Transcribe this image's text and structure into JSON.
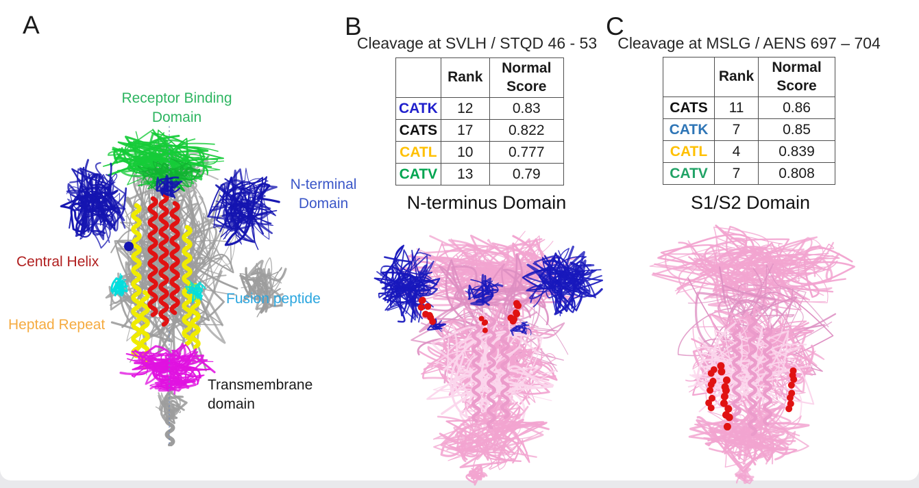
{
  "panels": {
    "a": {
      "letter": "A",
      "labels": {
        "receptor_binding_domain": {
          "text": "Receptor Binding Domain",
          "color": "#2eb561"
        },
        "n_terminal_domain": {
          "text": "N-terminal Domain",
          "color": "#3a56c8"
        },
        "central_helix": {
          "text": "Central Helix",
          "color": "#b01e1e"
        },
        "fusion_peptide": {
          "text": "Fusion peptide",
          "color": "#2ba6df"
        },
        "heptad_repeat": {
          "text": "Heptad Repeat",
          "color": "#f5ab40"
        },
        "transmembrane_domain": {
          "text": "Transmembrane domain",
          "color": "#1a1a1a"
        }
      },
      "structure_colors": {
        "body": "#9d9d9d",
        "receptor_binding_domain": "#16cb38",
        "n_terminal_domain": "#1414b0",
        "central_helix": "#e11212",
        "heptad_repeat": "#efeb00",
        "fusion_peptide": "#00dede",
        "transmembrane_domain": "#e012e0"
      }
    },
    "b": {
      "letter": "B",
      "title": "Cleavage at SVLH / STQD 46 - 53",
      "subtitle": "N-terminus Domain",
      "table": {
        "headers": [
          "",
          "Rank",
          "Normal Score"
        ],
        "rows": [
          {
            "label": "CATK",
            "color": "#2020cc",
            "rank": "12",
            "score": "0.83"
          },
          {
            "label": "CATS",
            "color": "#111111",
            "rank": "17",
            "score": "0.822"
          },
          {
            "label": "CATL",
            "color": "#ffc000",
            "rank": "10",
            "score": "0.777"
          },
          {
            "label": "CATV",
            "color": "#00a550",
            "rank": "13",
            "score": "0.79"
          }
        ]
      },
      "structure_colors": {
        "body": "#f2a4d0",
        "n_terminal_domain": "#1818bc",
        "cleavage_site": "#e01212"
      }
    },
    "c": {
      "letter": "C",
      "title": "Cleavage at MSLG / AENS 697 – 704",
      "subtitle": "S1/S2 Domain",
      "table": {
        "headers": [
          "",
          "Rank",
          "Normal Score"
        ],
        "rows": [
          {
            "label": "CATS",
            "color": "#111111",
            "rank": "11",
            "score": "0.86"
          },
          {
            "label": "CATK",
            "color": "#2e75b6",
            "rank": "7",
            "score": "0.85"
          },
          {
            "label": "CATL",
            "color": "#ffc000",
            "rank": "4",
            "score": "0.839"
          },
          {
            "label": "CATV",
            "color": "#21a366",
            "rank": "7",
            "score": "0.808"
          }
        ]
      },
      "structure_colors": {
        "body": "#f2a4d0",
        "cleavage_site": "#e01212"
      }
    }
  }
}
